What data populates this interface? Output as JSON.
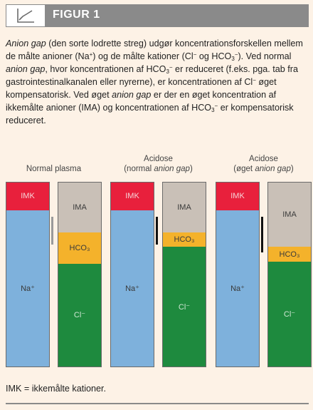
{
  "header": {
    "title": "FIGUR 1",
    "icon": "chart-line-icon"
  },
  "caption": {
    "parts": [
      {
        "t": "Anion gap",
        "i": true
      },
      {
        "t": " (den sorte lodrette streg) udgør koncentrationsforskellen mellem de målte anioner (Na"
      },
      {
        "t": "+",
        "sup": true
      },
      {
        "t": ") og de målte kationer (Cl"
      },
      {
        "t": "−",
        "sup": true
      },
      {
        "t": " og HCO"
      },
      {
        "t": "3",
        "sub": true
      },
      {
        "t": "−",
        "sup": true
      },
      {
        "t": "). Ved normal "
      },
      {
        "t": "anion gap",
        "i": true
      },
      {
        "t": ", hvor koncentrationen af HCO"
      },
      {
        "t": "3",
        "sub": true
      },
      {
        "t": "−",
        "sup": true
      },
      {
        "t": " er reduceret (f.eks. pga. tab fra gastrointestinalkanalen eller nyrerne), er koncentrationen af Cl"
      },
      {
        "t": "−",
        "sup": true
      },
      {
        "t": " øget kompensatorisk. Ved øget "
      },
      {
        "t": "anion gap",
        "i": true
      },
      {
        "t": " er der en øget koncentration af ikkemålte anioner (IMA) og koncentrationen af HCO"
      },
      {
        "t": "3",
        "sub": true
      },
      {
        "t": "−",
        "sup": true
      },
      {
        "t": " er kompensatorisk reduceret."
      }
    ]
  },
  "diagram": {
    "groups": [
      {
        "title_line1": "Normal plasma",
        "title_line2": "",
        "gap_faint": true,
        "cations": [
          {
            "label": "IMK",
            "kind": "red",
            "value": 15
          },
          {
            "label": "Na⁺",
            "kind": "blue",
            "value": 85
          }
        ],
        "anions": [
          {
            "label": "IMA",
            "kind": "gray",
            "value": 27
          },
          {
            "label": "HCO₃",
            "kind": "yellow",
            "value": 17
          },
          {
            "label": "Cl⁻",
            "kind": "green",
            "value": 56
          }
        ]
      },
      {
        "title_line1": "Acidose",
        "title_line2_pre": "(normal ",
        "title_line2_it": "anion gap",
        "title_line2_post": ")",
        "gap_faint": false,
        "cations": [
          {
            "label": "IMK",
            "kind": "red",
            "value": 15
          },
          {
            "label": "Na⁺",
            "kind": "blue",
            "value": 85
          }
        ],
        "anions": [
          {
            "label": "IMA",
            "kind": "gray",
            "value": 27
          },
          {
            "label": "HCO₃",
            "kind": "yellow",
            "value": 8
          },
          {
            "label": "Cl⁻",
            "kind": "green",
            "value": 65
          }
        ]
      },
      {
        "title_line1": "Acidose",
        "title_line2_pre": "(øget ",
        "title_line2_it": "anion gap",
        "title_line2_post": ")",
        "gap_faint": false,
        "cations": [
          {
            "label": "IMK",
            "kind": "red",
            "value": 15
          },
          {
            "label": "Na⁺",
            "kind": "blue",
            "value": 85
          }
        ],
        "anions": [
          {
            "label": "IMA",
            "kind": "gray",
            "value": 35
          },
          {
            "label": "HCO₃",
            "kind": "yellow",
            "value": 8
          },
          {
            "label": "Cl⁻",
            "kind": "green",
            "value": 57
          }
        ]
      }
    ],
    "colors": {
      "blue": "#7eb1dc",
      "red": "#e8203c",
      "gray": "#c9c0b7",
      "yellow": "#f4b22b",
      "green": "#1e8a3e"
    }
  },
  "footnote": "IMK = ikkemålte kationer."
}
